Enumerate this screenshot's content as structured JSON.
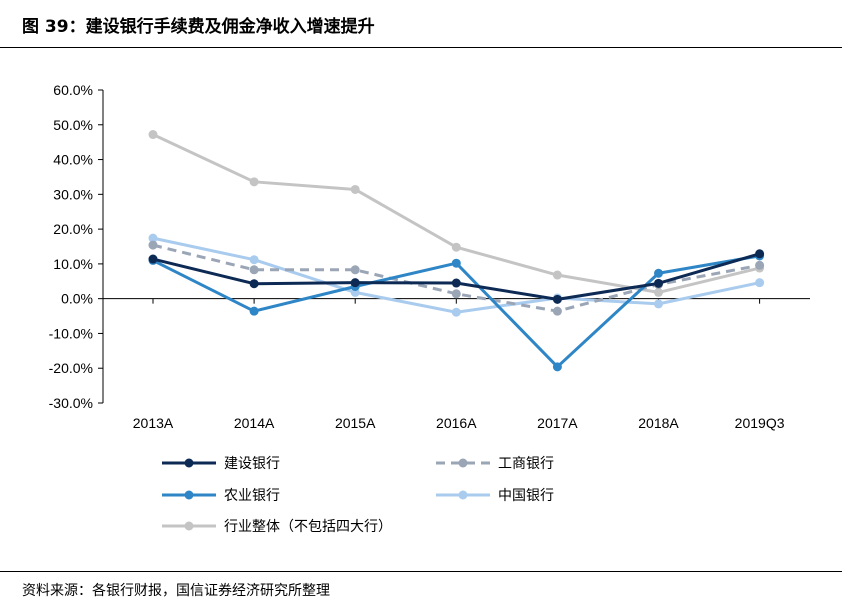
{
  "figure": {
    "title": "图 39：建设银行手续费及佣金净收入增速提升",
    "source": "资料来源：各银行财报，国信证券经济研究所整理"
  },
  "colors": {
    "建设银行": "#0d2a55",
    "工商银行": "#9aa5b6",
    "农业银行": "#2e86c6",
    "中国银行": "#a9cbee",
    "行业整体（不包括四大行）": "#c4c4c4"
  },
  "chart_data": {
    "type": "line",
    "x": [
      "2013A",
      "2014A",
      "2015A",
      "2016A",
      "2017A",
      "2018A",
      "2019Q3"
    ],
    "ylim": [
      -30,
      60
    ],
    "yticks": [
      -30,
      -20,
      -10,
      0,
      10,
      20,
      30,
      40,
      50,
      60
    ],
    "ytick_labels": [
      "-30.0%",
      "-20.0%",
      "-10.0%",
      "0.0%",
      "10.0%",
      "20.0%",
      "30.0%",
      "40.0%",
      "50.0%",
      "60.0%"
    ],
    "grid": false,
    "legend_position": "bottom",
    "series": [
      {
        "name": "行业整体（不包括四大行）",
        "values": [
          47.2,
          33.6,
          31.4,
          14.8,
          6.8,
          1.8,
          8.8
        ],
        "style": "solid"
      },
      {
        "name": "中国银行",
        "values": [
          17.4,
          11.2,
          1.8,
          -3.9,
          0.2,
          -1.5,
          4.6
        ],
        "style": "solid"
      },
      {
        "name": "工商银行",
        "values": [
          15.4,
          8.3,
          8.3,
          1.4,
          -3.6,
          4.1,
          9.6
        ],
        "style": "dashed"
      },
      {
        "name": "农业银行",
        "values": [
          11.0,
          -3.6,
          3.5,
          10.2,
          -19.6,
          7.3,
          12.3
        ],
        "style": "solid"
      },
      {
        "name": "建设银行",
        "values": [
          11.4,
          4.3,
          4.6,
          4.5,
          -0.2,
          4.4,
          12.9
        ],
        "style": "solid"
      }
    ],
    "legend": [
      {
        "name": "建设银行",
        "style": "solid"
      },
      {
        "name": "工商银行",
        "style": "dashed"
      },
      {
        "name": "农业银行",
        "style": "solid"
      },
      {
        "name": "中国银行",
        "style": "solid"
      },
      {
        "name": "行业整体（不包括四大行）",
        "style": "solid"
      }
    ]
  }
}
